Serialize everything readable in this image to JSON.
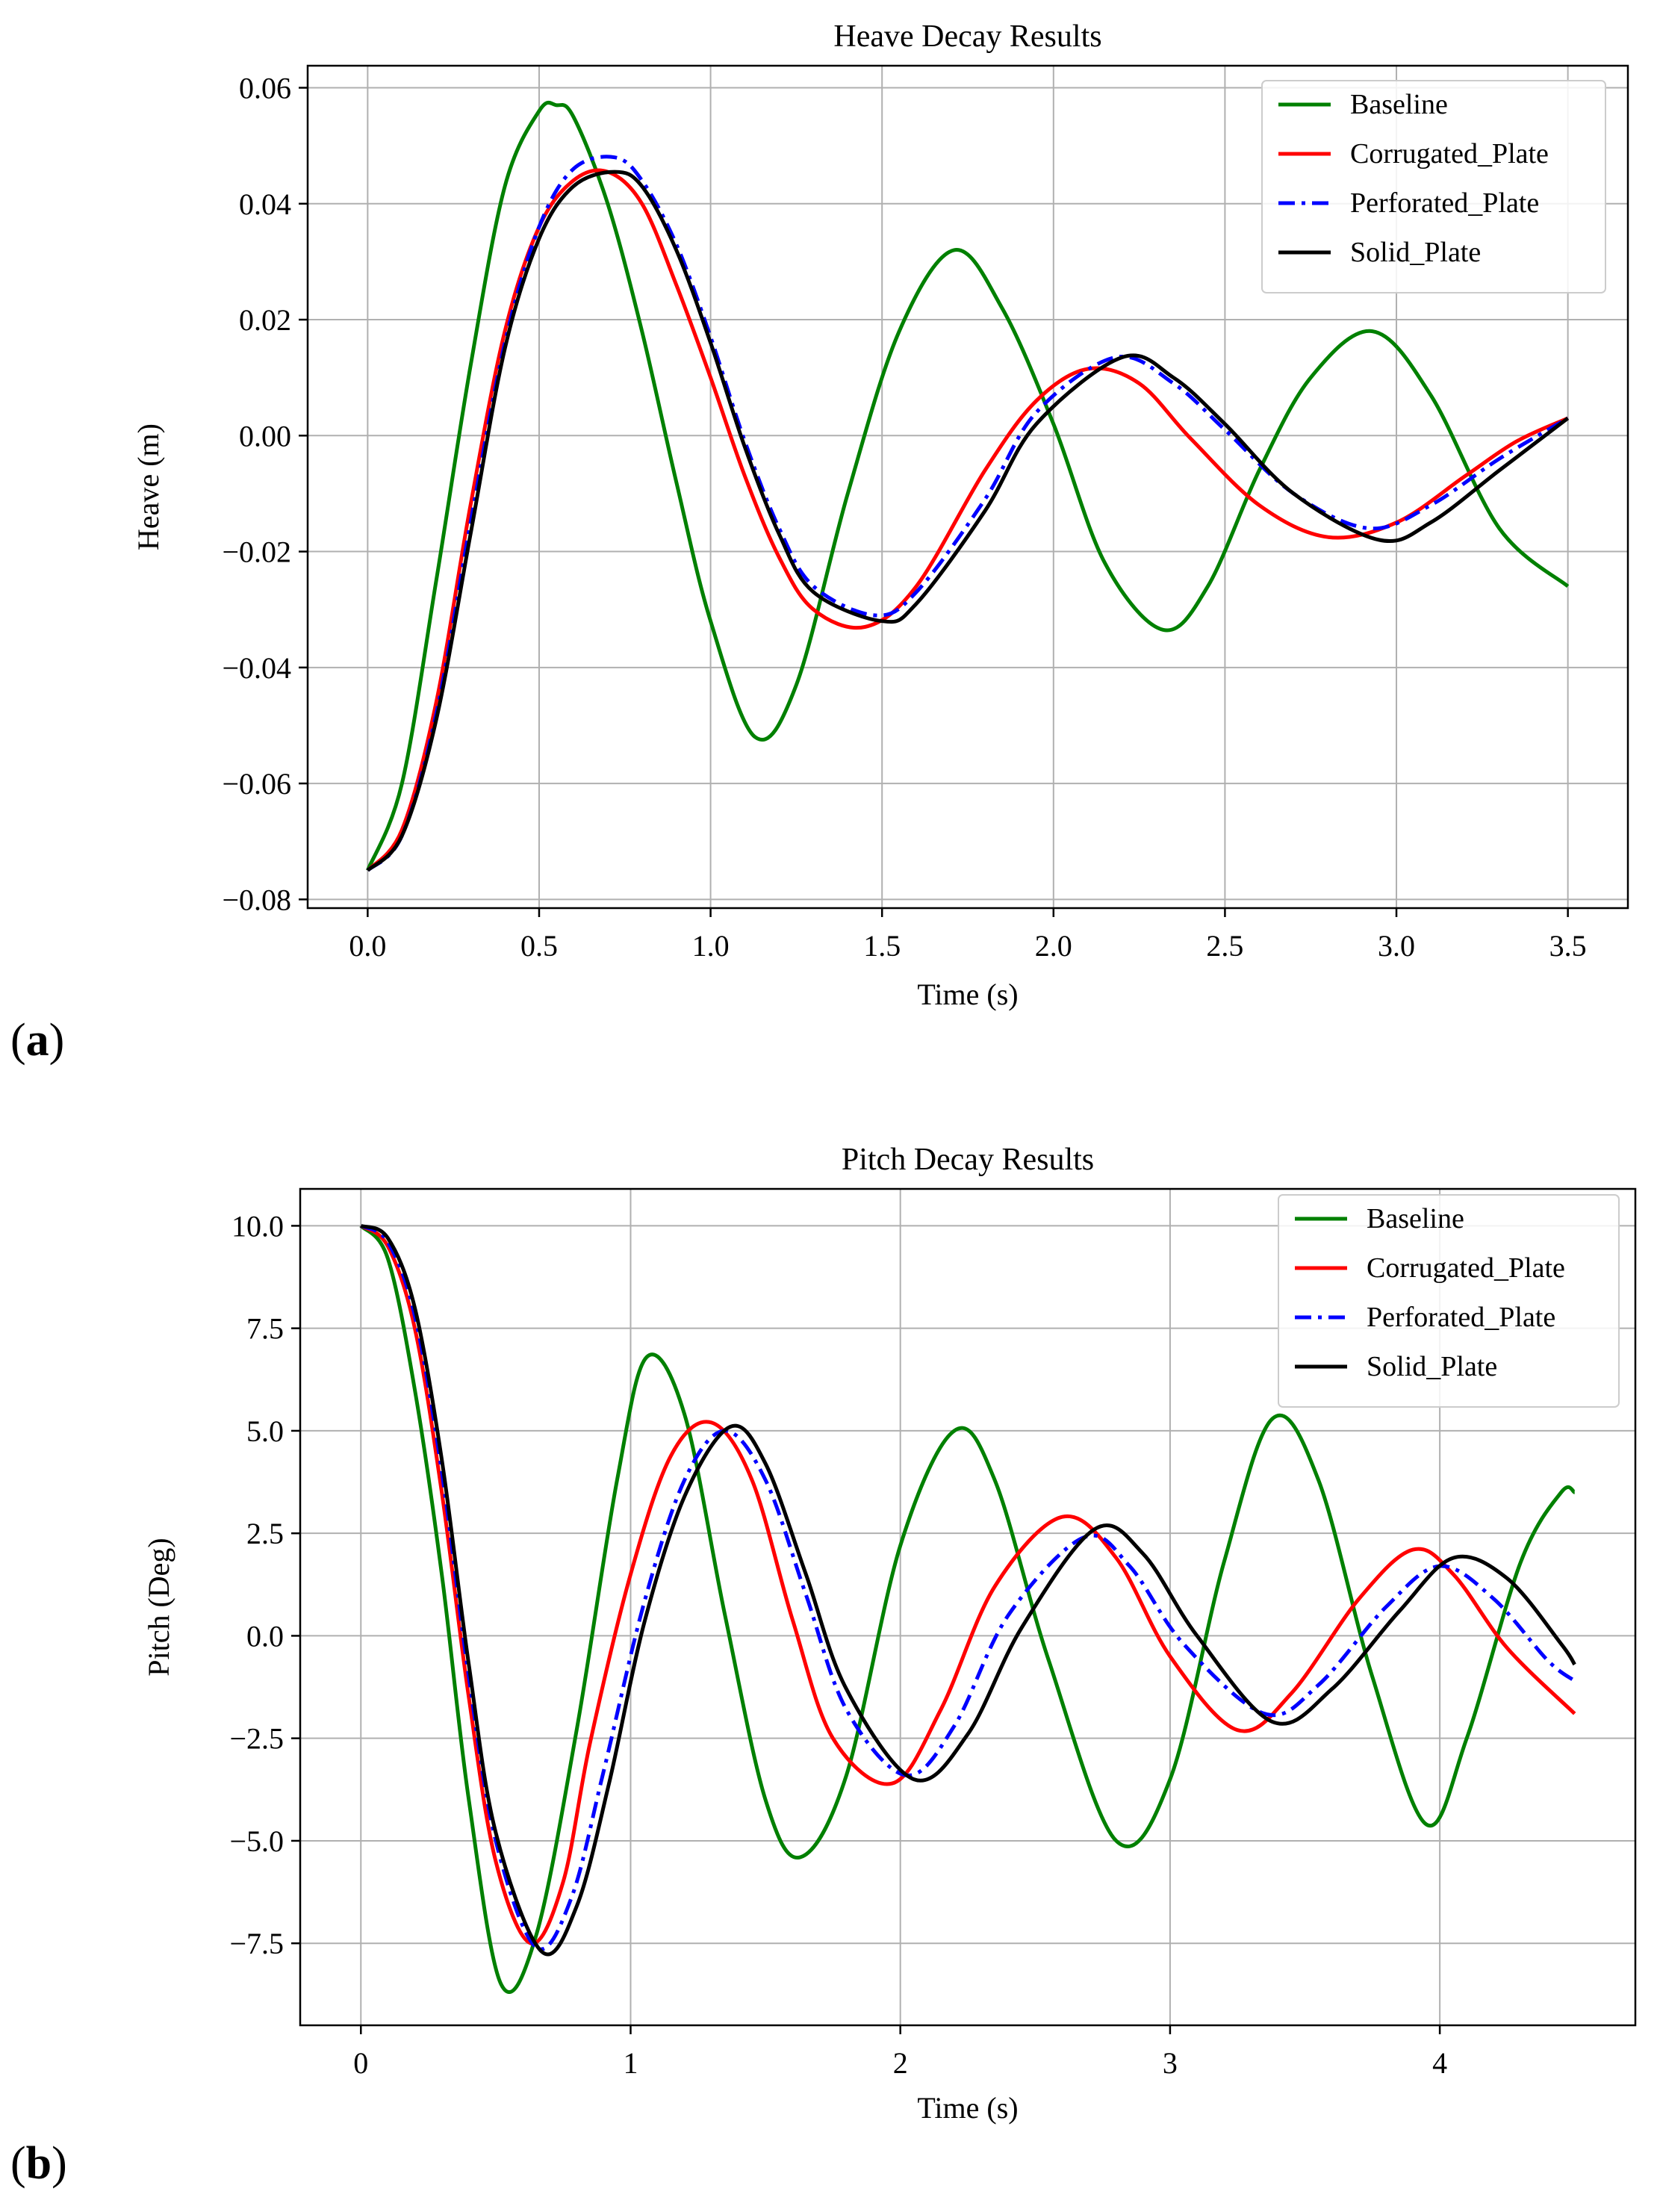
{
  "panels": [
    {
      "label_open": "(",
      "label_letter": "a",
      "label_close": ")"
    },
    {
      "label_open": "(",
      "label_letter": "b",
      "label_close": ")"
    }
  ],
  "chart_data": [
    {
      "type": "line",
      "title": "Heave Decay Results",
      "xlabel": "Time (s)",
      "ylabel": "Heave (m)",
      "xlim": [
        -0.175,
        3.675
      ],
      "ylim": [
        -0.0815,
        0.0638
      ],
      "xticks": [
        0.0,
        0.5,
        1.0,
        1.5,
        2.0,
        2.5,
        3.0,
        3.5
      ],
      "xtick_labels": [
        "0.0",
        "0.5",
        "1.0",
        "1.5",
        "2.0",
        "2.5",
        "3.0",
        "3.5"
      ],
      "yticks": [
        -0.08,
        -0.06,
        -0.04,
        -0.02,
        0.0,
        0.02,
        0.04,
        0.06
      ],
      "ytick_labels": [
        "−0.08",
        "−0.06",
        "−0.04",
        "−0.02",
        "0.00",
        "0.02",
        "0.04",
        "0.06"
      ],
      "grid": true,
      "legend_position": "top-right",
      "series": [
        {
          "name": "Baseline",
          "color": "#008000",
          "dash": "solid",
          "x": [
            0,
            0.1,
            0.2,
            0.3,
            0.4,
            0.5,
            0.55,
            0.6,
            0.7,
            0.8,
            0.9,
            1.0,
            1.13,
            1.25,
            1.4,
            1.55,
            1.71,
            1.85,
            2.0,
            2.15,
            2.32,
            2.45,
            2.6,
            2.75,
            2.93,
            3.1,
            3.3,
            3.5
          ],
          "y": [
            -0.075,
            -0.06,
            -0.025,
            0.012,
            0.043,
            0.056,
            0.057,
            0.055,
            0.04,
            0.018,
            -0.008,
            -0.032,
            -0.052,
            -0.043,
            -0.01,
            0.018,
            0.032,
            0.022,
            0.002,
            -0.022,
            -0.0335,
            -0.026,
            -0.006,
            0.01,
            0.018,
            0.007,
            -0.016,
            -0.026
          ]
        },
        {
          "name": "Corrugated_Plate",
          "color": "#ff0000",
          "dash": "solid",
          "x": [
            0,
            0.1,
            0.2,
            0.3,
            0.4,
            0.5,
            0.6,
            0.7,
            0.8,
            0.9,
            1.0,
            1.1,
            1.2,
            1.3,
            1.45,
            1.6,
            1.8,
            1.95,
            2.1,
            2.25,
            2.4,
            2.6,
            2.8,
            3.0,
            3.2,
            3.35,
            3.5
          ],
          "y": [
            -0.075,
            -0.068,
            -0.046,
            -0.012,
            0.018,
            0.036,
            0.044,
            0.0455,
            0.04,
            0.026,
            0.01,
            -0.007,
            -0.021,
            -0.03,
            -0.033,
            -0.026,
            -0.006,
            0.006,
            0.0115,
            0.009,
            -0.0005,
            -0.012,
            -0.0175,
            -0.015,
            -0.007,
            -0.001,
            0.003
          ]
        },
        {
          "name": "Perforated_Plate",
          "color": "#0000ff",
          "dash": "dashdot",
          "x": [
            0,
            0.1,
            0.2,
            0.3,
            0.4,
            0.5,
            0.6,
            0.72,
            0.8,
            0.9,
            1.0,
            1.1,
            1.2,
            1.3,
            1.48,
            1.6,
            1.8,
            1.95,
            2.18,
            2.35,
            2.5,
            2.7,
            2.92,
            3.1,
            3.3,
            3.5
          ],
          "y": [
            -0.075,
            -0.069,
            -0.048,
            -0.015,
            0.016,
            0.036,
            0.046,
            0.048,
            0.044,
            0.033,
            0.017,
            -0.001,
            -0.016,
            -0.026,
            -0.031,
            -0.027,
            -0.011,
            0.004,
            0.0135,
            0.009,
            0.001,
            -0.01,
            -0.016,
            -0.012,
            -0.004,
            0.003
          ]
        },
        {
          "name": "Solid_Plate",
          "color": "#000000",
          "dash": "solid",
          "x": [
            0,
            0.1,
            0.2,
            0.3,
            0.4,
            0.5,
            0.6,
            0.72,
            0.8,
            0.9,
            1.0,
            1.1,
            1.2,
            1.3,
            1.5,
            1.6,
            1.8,
            1.95,
            2.2,
            2.35,
            2.5,
            2.7,
            2.95,
            3.1,
            3.3,
            3.5
          ],
          "y": [
            -0.075,
            -0.069,
            -0.049,
            -0.017,
            0.015,
            0.034,
            0.043,
            0.0455,
            0.043,
            0.032,
            0.016,
            -0.002,
            -0.017,
            -0.027,
            -0.032,
            -0.029,
            -0.013,
            0.002,
            0.0135,
            0.01,
            0.002,
            -0.01,
            -0.018,
            -0.015,
            -0.006,
            0.003
          ]
        }
      ]
    },
    {
      "type": "line",
      "title": "Pitch Decay Results",
      "xlabel": "Time (s)",
      "ylabel": "Pitch (Deg)",
      "xlim": [
        -0.225,
        4.725
      ],
      "ylim": [
        -9.5,
        10.9
      ],
      "xticks": [
        0,
        1,
        2,
        3,
        4
      ],
      "xtick_labels": [
        "0",
        "1",
        "2",
        "3",
        "4"
      ],
      "yticks": [
        -7.5,
        -5.0,
        -2.5,
        0.0,
        2.5,
        5.0,
        7.5,
        10.0
      ],
      "ytick_labels": [
        "−7.5",
        "−5.0",
        "−2.5",
        "0.0",
        "2.5",
        "5.0",
        "7.5",
        "10.0"
      ],
      "grid": true,
      "legend_position": "top-right",
      "series": [
        {
          "name": "Baseline",
          "color": "#008000",
          "dash": "solid",
          "x": [
            0,
            0.1,
            0.2,
            0.3,
            0.4,
            0.52,
            0.65,
            0.8,
            0.95,
            1.06,
            1.2,
            1.35,
            1.5,
            1.63,
            1.8,
            2.0,
            2.2,
            2.35,
            2.55,
            2.8,
            3.0,
            3.2,
            3.38,
            3.55,
            3.75,
            3.95,
            4.1,
            4.3,
            4.45,
            4.5
          ],
          "y": [
            10,
            9.2,
            6,
            1.5,
            -4,
            -8.5,
            -7.3,
            -2.3,
            3.8,
            6.8,
            5.4,
            0.5,
            -4,
            -5.4,
            -3.4,
            2.2,
            5,
            3.8,
            -0.6,
            -5,
            -3.5,
            1.8,
            5.3,
            3.8,
            -1,
            -4.6,
            -2.5,
            1.8,
            3.5,
            3.5
          ]
        },
        {
          "name": "Corrugated_Plate",
          "color": "#ff0000",
          "dash": "solid",
          "x": [
            0,
            0.1,
            0.2,
            0.3,
            0.4,
            0.5,
            0.63,
            0.75,
            0.85,
            1.0,
            1.15,
            1.3,
            1.45,
            1.6,
            1.75,
            1.97,
            2.15,
            2.35,
            2.6,
            2.8,
            3.0,
            3.25,
            3.45,
            3.7,
            3.9,
            4.05,
            4.25,
            4.5
          ],
          "y": [
            10,
            9.5,
            7.5,
            3.5,
            -1.5,
            -5.5,
            -7.5,
            -6,
            -2.6,
            1.5,
            4.4,
            5.2,
            3.8,
            0.4,
            -2.5,
            -3.6,
            -1.8,
            1.2,
            2.9,
            1.9,
            -0.5,
            -2.3,
            -1.4,
            0.9,
            2.1,
            1.5,
            -0.3,
            -1.9
          ]
        },
        {
          "name": "Perforated_Plate",
          "color": "#0000ff",
          "dash": "dashdot",
          "x": [
            0,
            0.1,
            0.2,
            0.3,
            0.4,
            0.5,
            0.65,
            0.78,
            0.9,
            1.05,
            1.2,
            1.35,
            1.5,
            1.65,
            1.8,
            2.02,
            2.2,
            2.4,
            2.68,
            2.85,
            3.05,
            3.35,
            3.55,
            3.8,
            4.0,
            4.2,
            4.4,
            4.5
          ],
          "y": [
            10,
            9.6,
            7.8,
            4,
            -1,
            -5,
            -7.6,
            -6.4,
            -3.3,
            0.8,
            3.8,
            5,
            3.8,
            1,
            -1.8,
            -3.4,
            -2.2,
            0.5,
            2.4,
            1.7,
            -0.2,
            -1.9,
            -1.2,
            0.7,
            1.7,
            0.9,
            -0.6,
            -1.1
          ]
        },
        {
          "name": "Solid_Plate",
          "color": "#000000",
          "dash": "solid",
          "x": [
            0,
            0.1,
            0.2,
            0.3,
            0.4,
            0.5,
            0.67,
            0.8,
            0.92,
            1.05,
            1.2,
            1.37,
            1.5,
            1.65,
            1.8,
            2.05,
            2.25,
            2.45,
            2.72,
            2.9,
            3.1,
            3.38,
            3.6,
            3.85,
            4.05,
            4.25,
            4.45,
            4.5
          ],
          "y": [
            10,
            9.7,
            8,
            4.3,
            -0.7,
            -4.8,
            -7.7,
            -6.6,
            -3.6,
            0.3,
            3.4,
            5.1,
            4.2,
            1.5,
            -1.3,
            -3.5,
            -2.4,
            0.2,
            2.6,
            2,
            0,
            -2.1,
            -1.3,
            0.6,
            1.9,
            1.4,
            -0.2,
            -0.7
          ]
        }
      ]
    }
  ]
}
